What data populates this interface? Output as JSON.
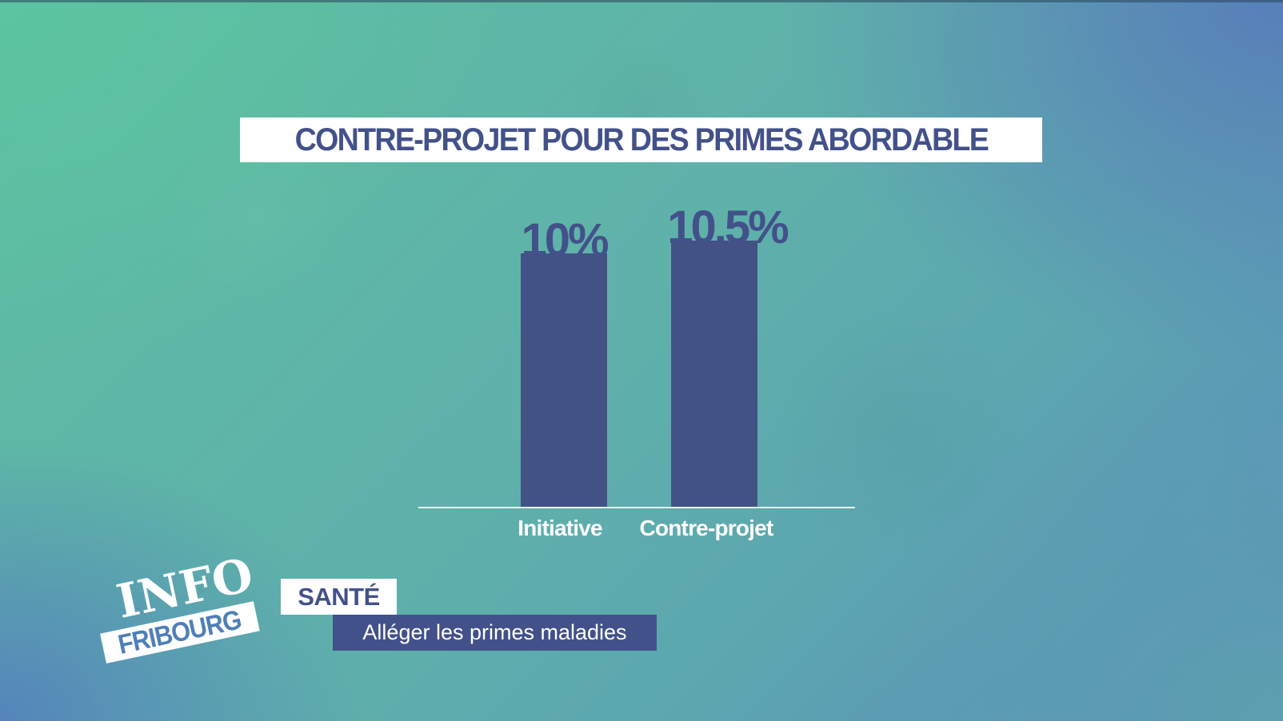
{
  "colors": {
    "bar": "#435284",
    "title_text": "#43518a",
    "title_bg": "#ffffff",
    "axis_line": "#e6f3f3",
    "category_label": "#ffffff",
    "background_top_left": "#5cbea0",
    "background_top_right": "#5880ba",
    "background_bottom_left": "#5484bc",
    "background_bottom_right": "#5ea3ae",
    "lower_third_headline_bg": "#43518a",
    "logo_band_text": "#4f7fb8"
  },
  "title": "CONTRE-PROJET POUR DES PRIMES ABORDABLE",
  "chart_data": {
    "type": "bar",
    "title": "CONTRE-PROJET POUR DES PRIMES ABORDABLE",
    "categories": [
      "Initiative",
      "Contre-projet"
    ],
    "values": [
      10,
      10.5
    ],
    "value_labels": [
      "10%",
      "10.5%"
    ],
    "unit": "%",
    "xlabel": "",
    "ylabel": "",
    "grid": false,
    "legend": null,
    "data_labels_position": "above-bar"
  },
  "bars": [
    {
      "category": "Initiative",
      "label": "10%"
    },
    {
      "category": "Contre-projet",
      "label": "10.5%"
    }
  ],
  "logo": {
    "line1": "INFO",
    "line2": "FRIBOURG"
  },
  "lower_third": {
    "topic": "SANTÉ",
    "headline": "Alléger les primes maladies"
  }
}
